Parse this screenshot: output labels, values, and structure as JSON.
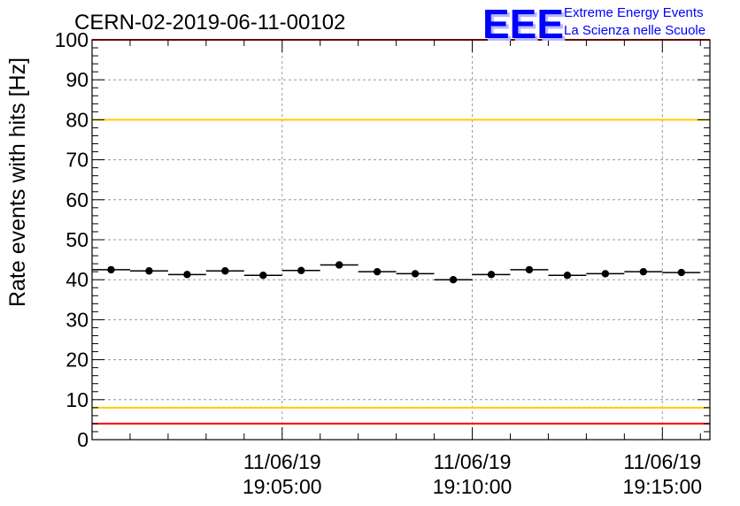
{
  "chart_data": {
    "type": "scatter",
    "title": "CERN-02-2019-06-11-00102",
    "ylabel": "Rate events with hits [Hz]",
    "xlabel": "",
    "ylim": [
      0,
      100
    ],
    "y_major_ticks": [
      0,
      10,
      20,
      30,
      40,
      50,
      60,
      70,
      80,
      90,
      100
    ],
    "y_tick_labels": [
      "0",
      "10",
      "20",
      "30",
      "40",
      "50",
      "60",
      "70",
      "80",
      "90",
      "100"
    ],
    "x_tick_labels": [
      {
        "date": "11/06/19",
        "time": "19:05:00"
      },
      {
        "date": "11/06/19",
        "time": "19:10:00"
      },
      {
        "date": "11/06/19",
        "time": "19:15:00"
      }
    ],
    "grid": true,
    "series": [
      {
        "x": [
          "19:00:30",
          "19:01:30",
          "19:02:30",
          "19:03:30",
          "19:04:30",
          "19:05:30",
          "19:06:30",
          "19:07:30",
          "19:08:30",
          "19:09:30",
          "19:10:30",
          "19:11:30",
          "19:12:30",
          "19:13:30",
          "19:14:30",
          "19:15:30"
        ],
        "values": [
          42.5,
          42.2,
          41.3,
          42.2,
          41.1,
          42.3,
          43.7,
          42.0,
          41.5,
          40.0,
          41.3,
          42.5,
          41.1,
          41.5,
          42.0,
          41.8
        ],
        "color": "#000000"
      }
    ],
    "reference_lines": [
      {
        "y": 100,
        "color": "#ff0000"
      },
      {
        "y": 80,
        "color": "#ffcc00"
      },
      {
        "y": 8,
        "color": "#ffcc00"
      },
      {
        "y": 4,
        "color": "#ff0000"
      }
    ]
  },
  "logo": {
    "mark": "EEE",
    "line1": "Extreme Energy Events",
    "line2": "La Scienza nelle Scuole",
    "color": "#0000ff"
  }
}
